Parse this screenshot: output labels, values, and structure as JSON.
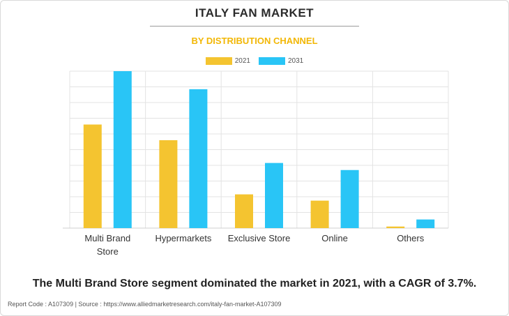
{
  "title": "ITALY FAN MARKET",
  "subtitle": "BY DISTRIBUTION CHANNEL",
  "caption": "The Multi Brand Store segment dominated the market in 2021, with a CAGR of 3.7%.",
  "footer": "Report Code : A107309  |  Source : https://www.alliedmarketresearch.com/italy-fan-market-A107309",
  "colors": {
    "title": "#2b2b2b",
    "subtitle": "#f2b705",
    "series_2021": "#f4c430",
    "series_2031": "#29c5f6",
    "grid": "#e3e3e3"
  },
  "chart_data": {
    "type": "bar",
    "categories": [
      "Multi Brand Store",
      "Hypermarkets",
      "Exclusive Store",
      "Online",
      "Others"
    ],
    "series": [
      {
        "name": "2021",
        "values": [
          66,
          56,
          21.5,
          17.5,
          1
        ]
      },
      {
        "name": "2031",
        "values": [
          100,
          88.5,
          41.5,
          37,
          5.5
        ]
      }
    ],
    "ylim": [
      0,
      100
    ],
    "y_axis_labels_shown": false,
    "grid": true,
    "legend_position": "top-center"
  }
}
